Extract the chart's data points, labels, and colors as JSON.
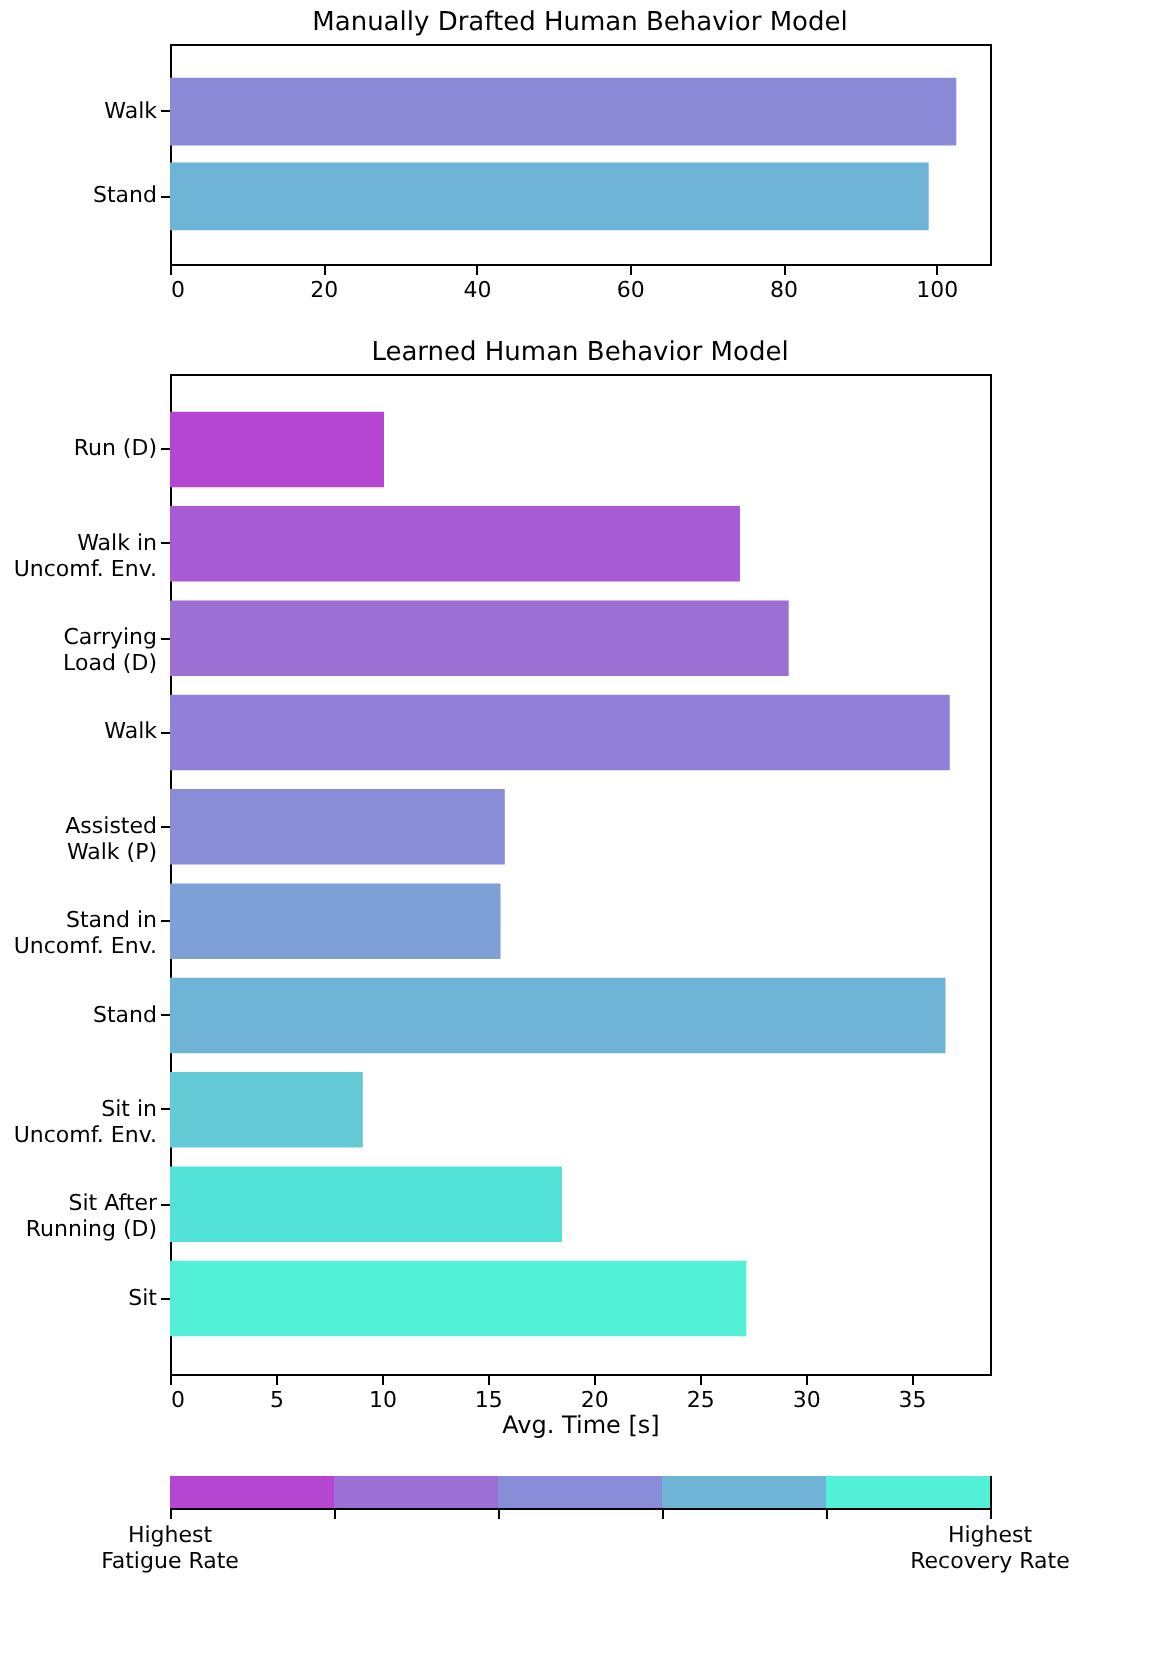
{
  "chart_data": [
    {
      "type": "bar",
      "orientation": "horizontal",
      "title": "Manually Drafted Human Behavior Model",
      "categories": [
        "Walk",
        "Stand"
      ],
      "values": [
        102.6,
        99.0
      ],
      "colors": [
        "#8a8ad6",
        "#6fb3d6"
      ],
      "xlim": [
        0,
        107
      ],
      "xticks": [
        0,
        20,
        40,
        60,
        80,
        100
      ],
      "grid": false,
      "legend": false
    },
    {
      "type": "bar",
      "orientation": "horizontal",
      "title": "Learned Human Behavior Model",
      "xlabel": "Avg. Time [s]",
      "categories": [
        "Run (D)",
        "Walk in\nUncomf. Env.",
        "Carrying\nLoad (D)",
        "Walk",
        "Assisted\nWalk (P)",
        "Stand in\nUncomf. Env.",
        "Stand",
        "Sit in\nUncomf. Env.",
        "Sit After\nRunning (D)",
        "Sit"
      ],
      "values": [
        10.1,
        26.9,
        29.2,
        36.8,
        15.8,
        15.6,
        36.6,
        9.1,
        18.5,
        27.2
      ],
      "colors": [
        "#b446d2",
        "#a75bd4",
        "#9c6fd4",
        "#9080d8",
        "#898cd6",
        "#7fa0d6",
        "#6fb3d6",
        "#63cad6",
        "#53e2d8",
        "#53f0d8"
      ],
      "xlim": [
        0,
        38.7
      ],
      "xticks": [
        0,
        5,
        10,
        15,
        20,
        25,
        30,
        35
      ],
      "grid": false,
      "legend": false
    },
    {
      "type": "other",
      "colors": [
        "#b446d2",
        "#9c6fd4",
        "#898cd6",
        "#6fb3d6",
        "#53f0d8"
      ],
      "annotations": [
        "Highest\nFatigue Rate",
        "Highest\nRecovery Rate"
      ]
    }
  ]
}
